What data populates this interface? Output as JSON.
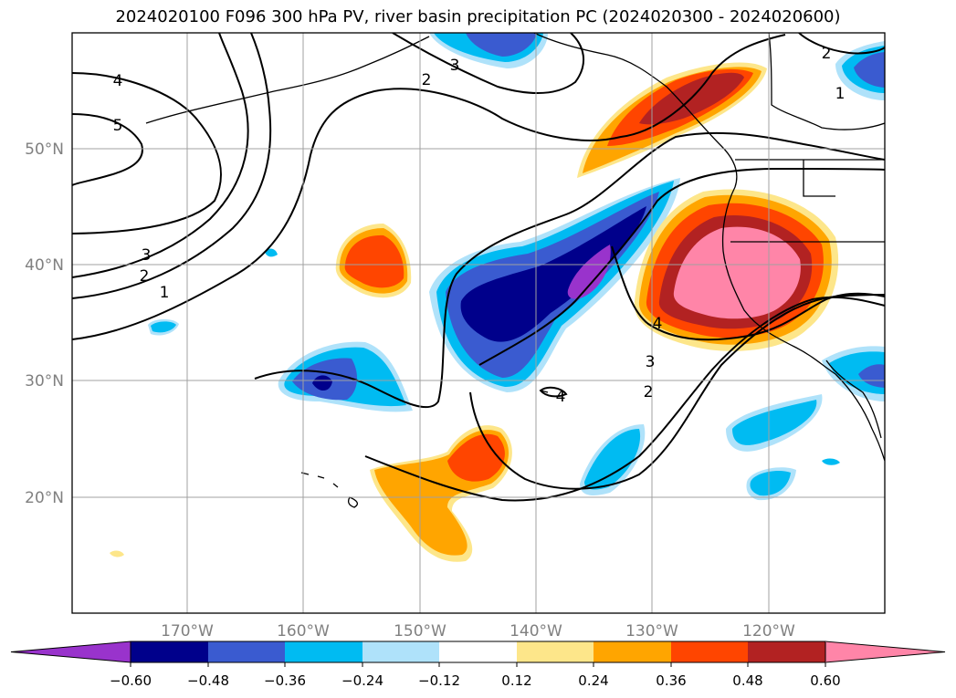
{
  "title": "2024020100 F096 300 hPa PV, river basin precipitation PC (2024020300 - 2024020600)",
  "map": {
    "lon_labels": [
      "170°W",
      "160°W",
      "150°W",
      "140°W",
      "130°W",
      "120°W"
    ],
    "lat_labels": [
      "50°N",
      "40°N",
      "30°N",
      "20°N"
    ],
    "contour_labels": [
      "4",
      "5",
      "3",
      "2",
      "1",
      "2",
      "3",
      "4",
      "4",
      "3",
      "2",
      "2",
      "1"
    ]
  },
  "colorbar": {
    "ticks": [
      "−0.60",
      "−0.48",
      "−0.36",
      "−0.24",
      "−0.12",
      "0.12",
      "0.24",
      "0.36",
      "0.48",
      "0.60"
    ],
    "colors": [
      "#9933cc",
      "#00008b",
      "#3a5bd0",
      "#00bbf2",
      "#afe2fa",
      "#ffffff",
      "#fde68a",
      "#ffa500",
      "#ff4500",
      "#b22222",
      "#ff85a8"
    ]
  }
}
